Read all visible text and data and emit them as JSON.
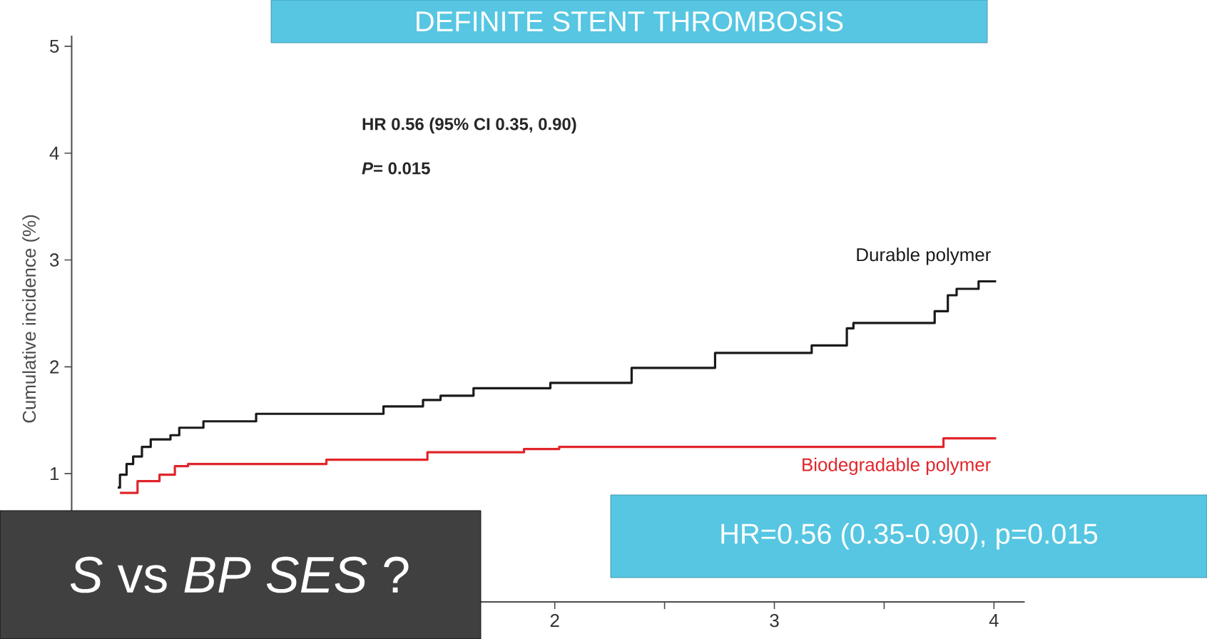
{
  "chart_data": {
    "type": "step",
    "title": "DEFINITE STENT THROMBOSIS",
    "ylabel": "Cumulative incidence (%)",
    "xlim": [
      -0.2,
      4.14
    ],
    "ylim": [
      -0.2,
      5.1
    ],
    "xticks": [
      2,
      {
        "value": 2.5,
        "label": null
      },
      3,
      {
        "value": 3.5,
        "label": null
      },
      4
    ],
    "yticks": [
      1,
      2,
      3,
      4,
      5
    ],
    "series": [
      {
        "name": "Durable polymer",
        "color": "#1a1a1a",
        "x": [
          0.01,
          0.02,
          0.05,
          0.08,
          0.12,
          0.16,
          0.25,
          0.29,
          0.4,
          0.64,
          1.22,
          1.4,
          1.48,
          1.63,
          1.98,
          2.35,
          2.73,
          3.17,
          3.33,
          3.36,
          3.73,
          3.79,
          3.83,
          3.93,
          4.01
        ],
        "values": [
          0.87,
          0.99,
          1.09,
          1.16,
          1.25,
          1.32,
          1.36,
          1.43,
          1.49,
          1.56,
          1.63,
          1.69,
          1.73,
          1.8,
          1.85,
          1.99,
          2.13,
          2.2,
          2.36,
          2.41,
          2.52,
          2.67,
          2.73,
          2.8,
          2.8
        ]
      },
      {
        "name": "Biodegradable polymer",
        "color": "#e0262b",
        "x": [
          0.02,
          0.1,
          0.2,
          0.27,
          0.33,
          0.96,
          1.42,
          1.86,
          2.02,
          3.77,
          4.01
        ],
        "values": [
          0.82,
          0.93,
          0.99,
          1.07,
          1.09,
          1.13,
          1.2,
          1.23,
          1.25,
          1.33,
          1.33
        ]
      }
    ],
    "annotations": [
      "HR 0.56 (95% CI 0.35, 0.90)",
      "*P*= 0.015",
      "HR=0.56 (0.35-0.90), p=0.015",
      "*S* vs *BP SES* ?"
    ]
  }
}
